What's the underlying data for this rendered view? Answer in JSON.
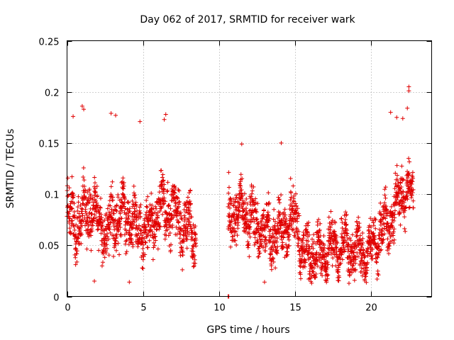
{
  "chart_data": {
    "type": "scatter",
    "title": "Day 062 of 2017, SRMTID for receiver wark",
    "xlabel": "GPS time / hours",
    "ylabel": "SRMTID / TECUs",
    "xlim": [
      0,
      24
    ],
    "ylim": [
      0,
      0.25
    ],
    "xticks": [
      0,
      5,
      10,
      15,
      20
    ],
    "xtick_labels": [
      "0",
      "5",
      "10",
      "15",
      "20"
    ],
    "yticks": [
      0,
      0.05,
      0.1,
      0.15,
      0.2,
      0.25
    ],
    "ytick_labels": [
      "0",
      "0.05",
      "0.1",
      "0.15",
      "0.2",
      "0.25"
    ],
    "grid": true,
    "marker": "plus",
    "series_color": "#e00000",
    "series": [
      {
        "name": "SRMTID",
        "segments": [
          {
            "t_start": 0.0,
            "t_end": 8.5,
            "base": [
              0.08,
              0.072,
              0.07,
              0.085,
              0.088,
              0.072,
              0.06,
              0.075,
              0.078,
              0.078,
              0.075,
              0.065,
              0.066,
              0.07,
              0.078,
              0.09,
              0.085,
              0.08,
              0.07,
              0.066,
              0.06
            ],
            "spread": 0.038
          },
          {
            "t_start": 10.6,
            "t_end": 15.3,
            "base": [
              0.075,
              0.082,
              0.085,
              0.078,
              0.07,
              0.065,
              0.058,
              0.062,
              0.068,
              0.072,
              0.078
            ],
            "spread": 0.035
          },
          {
            "t_start": 15.3,
            "t_end": 22.8,
            "base": [
              0.045,
              0.042,
              0.04,
              0.042,
              0.045,
              0.048,
              0.05,
              0.048,
              0.045,
              0.042,
              0.048,
              0.058,
              0.068,
              0.08,
              0.095,
              0.105,
              0.095
            ],
            "spread": 0.032
          }
        ],
        "extreme_points": [
          {
            "x": 1.0,
            "y": 0.186
          },
          {
            "x": 1.1,
            "y": 0.183
          },
          {
            "x": 0.4,
            "y": 0.176
          },
          {
            "x": 2.9,
            "y": 0.179
          },
          {
            "x": 3.2,
            "y": 0.177
          },
          {
            "x": 6.5,
            "y": 0.178
          },
          {
            "x": 6.4,
            "y": 0.173
          },
          {
            "x": 4.8,
            "y": 0.171
          },
          {
            "x": 14.1,
            "y": 0.15
          },
          {
            "x": 11.5,
            "y": 0.149
          },
          {
            "x": 21.3,
            "y": 0.18
          },
          {
            "x": 21.7,
            "y": 0.175
          },
          {
            "x": 22.5,
            "y": 0.205
          },
          {
            "x": 22.5,
            "y": 0.201
          },
          {
            "x": 22.4,
            "y": 0.184
          },
          {
            "x": 22.1,
            "y": 0.174
          },
          {
            "x": 1.8,
            "y": 0.015
          },
          {
            "x": 4.1,
            "y": 0.014
          },
          {
            "x": 13.0,
            "y": 0.014
          },
          {
            "x": 15.9,
            "y": 0.017
          },
          {
            "x": 16.1,
            "y": 0.013
          },
          {
            "x": 10.6,
            "y": 0.0
          },
          {
            "x": 10.65,
            "y": 0.0
          }
        ]
      }
    ]
  }
}
